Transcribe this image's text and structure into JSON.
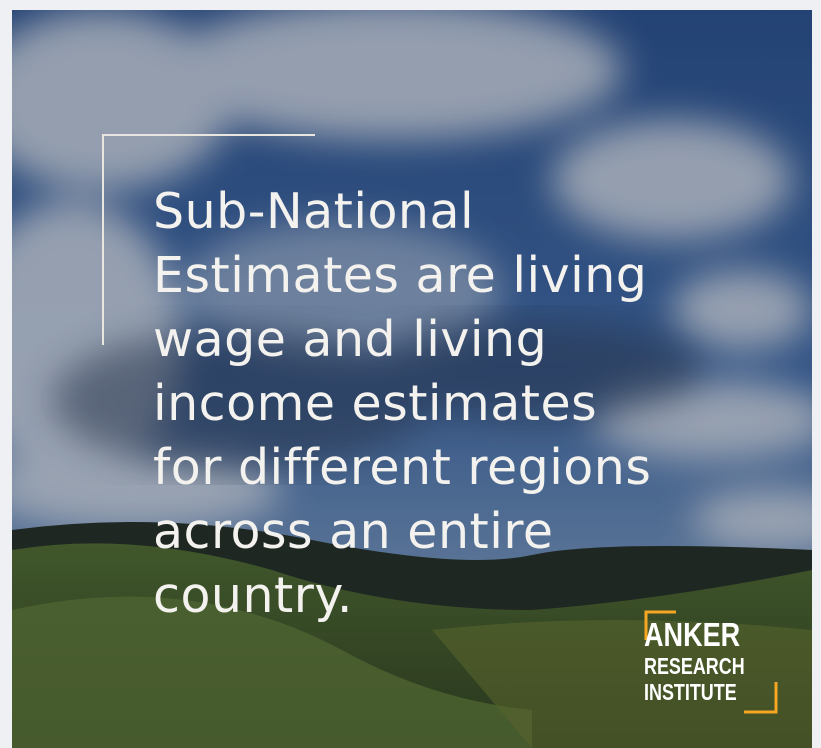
{
  "headline_lines": [
    "Sub-National",
    "Estimates are living",
    "wage and living",
    "income estimates",
    "for different regions",
    "across an entire",
    "country."
  ],
  "logo": {
    "line1": "ANKER",
    "line2": "RESEARCH",
    "line3": "INSTITUTE"
  }
}
